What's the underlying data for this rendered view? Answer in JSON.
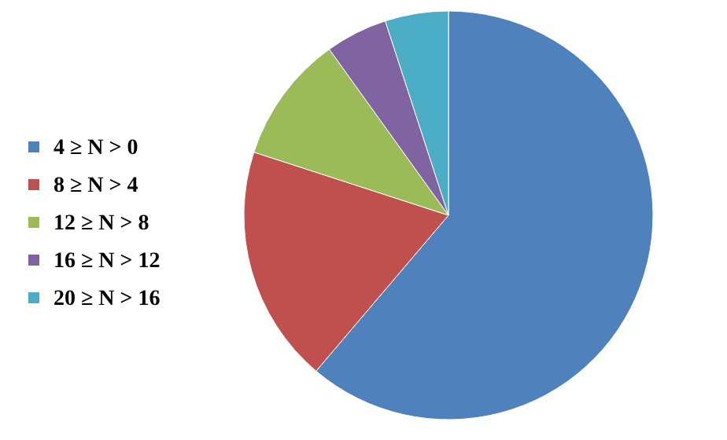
{
  "chart_data": {
    "type": "pie",
    "categories": [
      "4 ≥ N > 0",
      "8 ≥ N > 4",
      "12 ≥ N > 8",
      "16 ≥ N > 12",
      "20 ≥ N > 16"
    ],
    "values": [
      61.2,
      18.8,
      10.1,
      4.9,
      5.0
    ],
    "colors": [
      "#4f81bd",
      "#c0504d",
      "#9bbb59",
      "#8064a2",
      "#4bacc6"
    ],
    "legend": "left"
  }
}
